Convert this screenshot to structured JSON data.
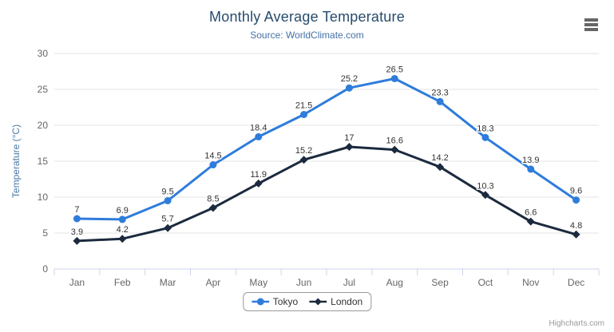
{
  "chart_data": {
    "type": "line",
    "title": "Monthly Average Temperature",
    "subtitle": "Source: WorldClimate.com",
    "categories": [
      "Jan",
      "Feb",
      "Mar",
      "Apr",
      "May",
      "Jun",
      "Jul",
      "Aug",
      "Sep",
      "Oct",
      "Nov",
      "Dec"
    ],
    "series": [
      {
        "name": "Tokyo",
        "color": "#2f7cdb",
        "marker": "circle",
        "values": [
          7,
          6.9,
          9.5,
          14.5,
          18.4,
          21.5,
          25.2,
          26.5,
          23.3,
          18.3,
          13.9,
          9.6
        ]
      },
      {
        "name": "London",
        "color": "#1b2a3e",
        "marker": "diamond",
        "values": [
          3.9,
          4.2,
          5.7,
          8.5,
          11.9,
          15.2,
          17,
          16.6,
          14.2,
          10.3,
          6.6,
          4.8
        ]
      }
    ],
    "xlabel": "",
    "ylabel": "Temperature (°C)",
    "ylim": [
      0,
      30
    ],
    "ytick_step": 5,
    "grid": true,
    "legend_position": "bottom",
    "data_labels": true
  },
  "credits": "Highcharts.com",
  "menu_icon": "hamburger-icon",
  "theme": {
    "title_color": "#274b6d",
    "subtitle_color": "#4572a7",
    "axis_title_color": "#4a7aa7",
    "tick_label_color": "#666666",
    "data_label_color": "#333333",
    "grid_color": "#e3e3e3",
    "axis_line_color": "#ccd6eb",
    "legend_border_color": "#999999",
    "credits_color": "#999999",
    "menu_icon_color": "#666666",
    "background": "#ffffff"
  }
}
